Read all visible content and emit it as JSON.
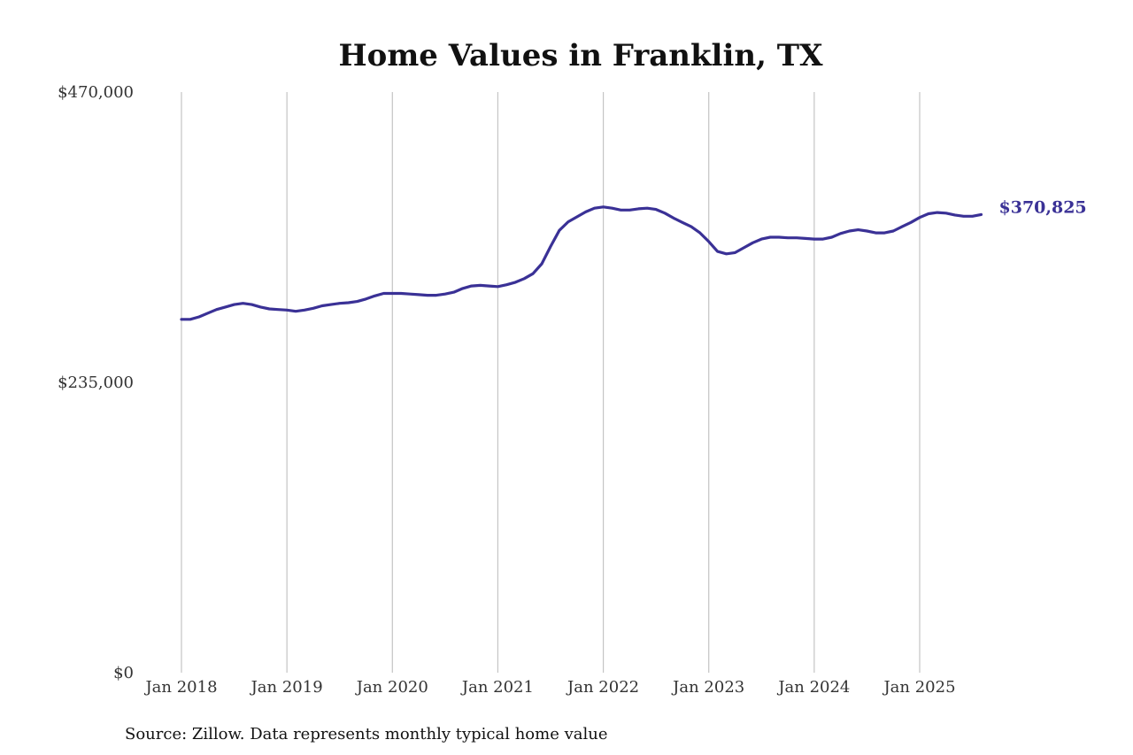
{
  "chart_data": {
    "type": "line",
    "title": "Home Values in Franklin, TX",
    "xlabel": "",
    "ylabel": "",
    "ylim": [
      0,
      470000
    ],
    "y_ticks": [
      {
        "value": 0,
        "label": "$0"
      },
      {
        "value": 235000,
        "label": "$235,000"
      },
      {
        "value": 470000,
        "label": "$470,000"
      }
    ],
    "x_ticks": [
      {
        "value": "2018-01",
        "label": "Jan 2018"
      },
      {
        "value": "2019-01",
        "label": "Jan 2019"
      },
      {
        "value": "2020-01",
        "label": "Jan 2020"
      },
      {
        "value": "2021-01",
        "label": "Jan 2021"
      },
      {
        "value": "2022-01",
        "label": "Jan 2022"
      },
      {
        "value": "2023-01",
        "label": "Jan 2023"
      },
      {
        "value": "2024-01",
        "label": "Jan 2024"
      },
      {
        "value": "2025-01",
        "label": "Jan 2025"
      }
    ],
    "grid": "vertical",
    "series": [
      {
        "color": "#3a3196",
        "end_label": "$370,825",
        "points": [
          [
            "2018-01",
            286000
          ],
          [
            "2018-02",
            286000
          ],
          [
            "2018-03",
            288000
          ],
          [
            "2018-04",
            291000
          ],
          [
            "2018-05",
            294000
          ],
          [
            "2018-06",
            296000
          ],
          [
            "2018-07",
            298000
          ],
          [
            "2018-08",
            299000
          ],
          [
            "2018-09",
            298000
          ],
          [
            "2018-10",
            296000
          ],
          [
            "2018-11",
            294500
          ],
          [
            "2018-12",
            294000
          ],
          [
            "2019-01",
            293500
          ],
          [
            "2019-02",
            292500
          ],
          [
            "2019-03",
            293500
          ],
          [
            "2019-04",
            295000
          ],
          [
            "2019-05",
            297000
          ],
          [
            "2019-06",
            298000
          ],
          [
            "2019-07",
            299000
          ],
          [
            "2019-08",
            299500
          ],
          [
            "2019-09",
            300500
          ],
          [
            "2019-10",
            302500
          ],
          [
            "2019-11",
            305000
          ],
          [
            "2019-12",
            307000
          ],
          [
            "2020-01",
            307000
          ],
          [
            "2020-02",
            307000
          ],
          [
            "2020-03",
            306500
          ],
          [
            "2020-04",
            306000
          ],
          [
            "2020-05",
            305500
          ],
          [
            "2020-06",
            305500
          ],
          [
            "2020-07",
            306500
          ],
          [
            "2020-08",
            308000
          ],
          [
            "2020-09",
            311000
          ],
          [
            "2020-10",
            313000
          ],
          [
            "2020-11",
            313500
          ],
          [
            "2020-12",
            313000
          ],
          [
            "2021-01",
            312500
          ],
          [
            "2021-02",
            314000
          ],
          [
            "2021-03",
            316000
          ],
          [
            "2021-04",
            319000
          ],
          [
            "2021-05",
            323000
          ],
          [
            "2021-06",
            331000
          ],
          [
            "2021-07",
            345000
          ],
          [
            "2021-08",
            358000
          ],
          [
            "2021-09",
            365000
          ],
          [
            "2021-10",
            369000
          ],
          [
            "2021-11",
            373000
          ],
          [
            "2021-12",
            376000
          ],
          [
            "2022-01",
            377000
          ],
          [
            "2022-02",
            376000
          ],
          [
            "2022-03",
            374500
          ],
          [
            "2022-04",
            374500
          ],
          [
            "2022-05",
            375500
          ],
          [
            "2022-06",
            376000
          ],
          [
            "2022-07",
            375000
          ],
          [
            "2022-08",
            372000
          ],
          [
            "2022-09",
            368000
          ],
          [
            "2022-10",
            364500
          ],
          [
            "2022-11",
            361000
          ],
          [
            "2022-12",
            356000
          ],
          [
            "2023-01",
            349000
          ],
          [
            "2023-02",
            341000
          ],
          [
            "2023-03",
            339000
          ],
          [
            "2023-04",
            340000
          ],
          [
            "2023-05",
            344000
          ],
          [
            "2023-06",
            348000
          ],
          [
            "2023-07",
            351000
          ],
          [
            "2023-08",
            352500
          ],
          [
            "2023-09",
            352500
          ],
          [
            "2023-10",
            352000
          ],
          [
            "2023-11",
            352000
          ],
          [
            "2023-12",
            351500
          ],
          [
            "2024-01",
            351000
          ],
          [
            "2024-02",
            351000
          ],
          [
            "2024-03",
            352500
          ],
          [
            "2024-04",
            355500
          ],
          [
            "2024-05",
            357500
          ],
          [
            "2024-06",
            358500
          ],
          [
            "2024-07",
            357500
          ],
          [
            "2024-08",
            356000
          ],
          [
            "2024-09",
            356000
          ],
          [
            "2024-10",
            357500
          ],
          [
            "2024-11",
            361000
          ],
          [
            "2024-12",
            364500
          ],
          [
            "2025-01",
            368500
          ],
          [
            "2025-02",
            371500
          ],
          [
            "2025-03",
            372500
          ],
          [
            "2025-04",
            372000
          ],
          [
            "2025-05",
            370500
          ],
          [
            "2025-06",
            369500
          ],
          [
            "2025-07",
            369500
          ],
          [
            "2025-08",
            370825
          ]
        ]
      }
    ]
  },
  "footer": {
    "source": "Source: Zillow. Data represents monthly typical home value"
  }
}
